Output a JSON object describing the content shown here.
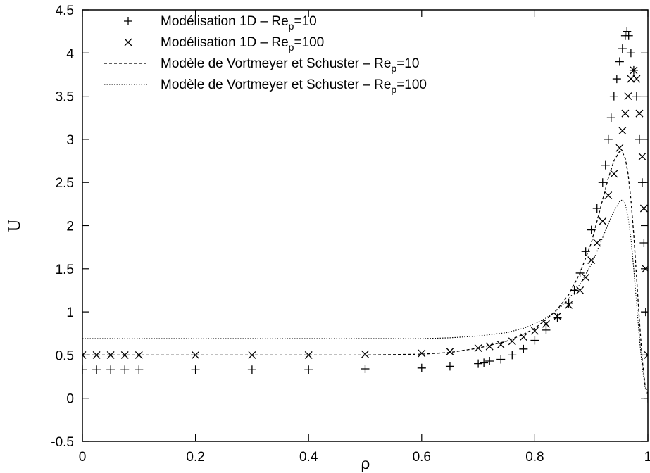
{
  "chart_data": {
    "type": "scatter",
    "title": "",
    "xlabel": "ρ",
    "ylabel": "U",
    "xlim": [
      0,
      1
    ],
    "ylim": [
      -0.5,
      4.5
    ],
    "grid": false,
    "legend_position": "top-left",
    "xticks": [
      0,
      0.2,
      0.4,
      0.6,
      0.8,
      1
    ],
    "xtick_labels": [
      "0",
      "0.2",
      "0.4",
      "0.6",
      "0.8",
      "1"
    ],
    "yticks": [
      -0.5,
      0,
      0.5,
      1,
      1.5,
      2,
      2.5,
      3,
      3.5,
      4,
      4.5
    ],
    "ytick_labels": [
      "-0.5",
      "0",
      "0.5",
      "1",
      "1.5",
      "2",
      "2.5",
      "3",
      "3.5",
      "4",
      "4.5"
    ],
    "series": [
      {
        "name": "Modélisation 1D - Re_p=10",
        "label_main": "Modélisation 1D – Re",
        "label_sub": "p",
        "label_tail": "=10",
        "marker": "plus",
        "style": "points",
        "x": [
          0,
          0.025,
          0.05,
          0.075,
          0.1,
          0.2,
          0.3,
          0.4,
          0.5,
          0.6,
          0.65,
          0.7,
          0.71,
          0.72,
          0.74,
          0.76,
          0.78,
          0.8,
          0.82,
          0.84,
          0.86,
          0.87,
          0.88,
          0.89,
          0.9,
          0.91,
          0.92,
          0.925,
          0.93,
          0.935,
          0.94,
          0.945,
          0.95,
          0.955,
          0.96,
          0.963,
          0.966,
          0.97,
          0.975,
          0.98,
          0.985,
          0.99,
          0.993,
          0.996,
          1.0
        ],
        "y": [
          0.33,
          0.33,
          0.33,
          0.33,
          0.33,
          0.33,
          0.33,
          0.33,
          0.34,
          0.35,
          0.37,
          0.4,
          0.41,
          0.43,
          0.45,
          0.5,
          0.57,
          0.67,
          0.79,
          0.93,
          1.1,
          1.25,
          1.45,
          1.7,
          1.95,
          2.2,
          2.5,
          2.7,
          3.0,
          3.25,
          3.5,
          3.7,
          3.9,
          4.05,
          4.2,
          4.25,
          4.2,
          4.0,
          3.8,
          3.5,
          3.0,
          2.5,
          1.8,
          1.0,
          0.0
        ]
      },
      {
        "name": "Modélisation 1D - Re_p=100",
        "label_main": "Modélisation 1D – Re",
        "label_sub": "p",
        "label_tail": "=100",
        "marker": "cross",
        "style": "points",
        "x": [
          0,
          0.025,
          0.05,
          0.075,
          0.1,
          0.2,
          0.3,
          0.4,
          0.5,
          0.6,
          0.65,
          0.7,
          0.72,
          0.74,
          0.76,
          0.78,
          0.8,
          0.82,
          0.84,
          0.86,
          0.88,
          0.89,
          0.9,
          0.91,
          0.92,
          0.93,
          0.94,
          0.95,
          0.955,
          0.96,
          0.965,
          0.97,
          0.975,
          0.98,
          0.985,
          0.99,
          0.993,
          0.996,
          1.0
        ],
        "y": [
          0.5,
          0.5,
          0.5,
          0.5,
          0.5,
          0.5,
          0.5,
          0.5,
          0.51,
          0.52,
          0.54,
          0.58,
          0.6,
          0.62,
          0.66,
          0.71,
          0.78,
          0.86,
          0.95,
          1.08,
          1.25,
          1.4,
          1.6,
          1.8,
          2.05,
          2.35,
          2.6,
          2.9,
          3.1,
          3.3,
          3.5,
          3.7,
          3.8,
          3.7,
          3.3,
          2.8,
          2.2,
          1.5,
          0.5
        ]
      },
      {
        "name": "Modèle de Vortmeyer et Schuster - Re_p=10",
        "label_main": "Modèle de Vortmeyer et Schuster – Re",
        "label_sub": "p",
        "label_tail": "=10",
        "style": "dashed",
        "x": [
          0,
          0.1,
          0.2,
          0.3,
          0.4,
          0.5,
          0.6,
          0.65,
          0.7,
          0.75,
          0.78,
          0.8,
          0.82,
          0.84,
          0.86,
          0.88,
          0.9,
          0.91,
          0.92,
          0.93,
          0.94,
          0.95,
          0.955,
          0.96,
          0.965,
          0.97,
          0.975,
          0.98,
          0.985,
          0.99,
          0.995,
          1.0
        ],
        "y": [
          0.5,
          0.5,
          0.5,
          0.5,
          0.5,
          0.5,
          0.51,
          0.53,
          0.58,
          0.66,
          0.74,
          0.81,
          0.91,
          1.03,
          1.2,
          1.45,
          1.8,
          2.05,
          2.3,
          2.55,
          2.75,
          2.86,
          2.85,
          2.78,
          2.6,
          2.3,
          1.9,
          1.4,
          0.9,
          0.45,
          0.15,
          0.05
        ]
      },
      {
        "name": "Modèle de Vortmeyer et Schuster - Re_p=100",
        "label_main": "Modèle de Vortmeyer et Schuster – Re",
        "label_sub": "p",
        "label_tail": "=100",
        "style": "dotted",
        "x": [
          0,
          0.1,
          0.2,
          0.3,
          0.4,
          0.5,
          0.6,
          0.65,
          0.7,
          0.75,
          0.78,
          0.8,
          0.82,
          0.84,
          0.86,
          0.88,
          0.9,
          0.91,
          0.92,
          0.93,
          0.94,
          0.95,
          0.955,
          0.96,
          0.965,
          0.97,
          0.975,
          0.98,
          0.985,
          0.99,
          0.995,
          1.0
        ],
        "y": [
          0.69,
          0.69,
          0.69,
          0.69,
          0.69,
          0.69,
          0.69,
          0.7,
          0.72,
          0.76,
          0.81,
          0.86,
          0.93,
          1.02,
          1.15,
          1.32,
          1.55,
          1.7,
          1.86,
          2.02,
          2.17,
          2.28,
          2.3,
          2.25,
          2.1,
          1.85,
          1.5,
          1.1,
          0.7,
          0.35,
          0.12,
          0.03
        ]
      }
    ]
  }
}
